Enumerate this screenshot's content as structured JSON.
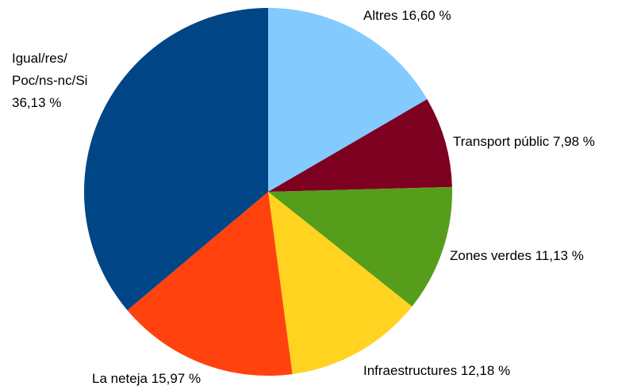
{
  "chart_data": {
    "type": "pie",
    "categories": [
      "Altres",
      "Transport públic",
      "Zones verdes",
      "Infraestructures",
      "La neteja",
      "Igual/res/Poc/ns-nc/Si"
    ],
    "values": [
      16.6,
      7.98,
      11.13,
      12.18,
      15.97,
      36.13
    ],
    "value_labels": [
      "16,60 %",
      "7,98 %",
      "11,13 %",
      "12,18 %",
      "15,97 %",
      "36,13 %"
    ],
    "colors": [
      "#83caff",
      "#7e0021",
      "#579d1c",
      "#ffd320",
      "#ff420e",
      "#004586"
    ]
  }
}
